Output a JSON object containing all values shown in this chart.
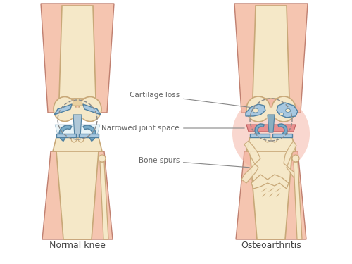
{
  "title": "",
  "label_normal": "Normal knee",
  "label_oa": "Osteoarthritis",
  "annotations": [
    "Cartilage loss",
    "Narrowed joint space",
    "Bone spurs"
  ],
  "bg_color": "#ffffff",
  "skin_color": "#f5c5b0",
  "bone_color": "#f5e8c8",
  "bone_outline": "#c8a878",
  "cartilage_color": "#a8c8e0",
  "cartilage_outline": "#5080a0",
  "meniscus_color": "#7aacc8",
  "inflammation_color": "#f0a0a0",
  "text_color": "#555555",
  "label_fontsize": 9,
  "annotation_fontsize": 7.5
}
